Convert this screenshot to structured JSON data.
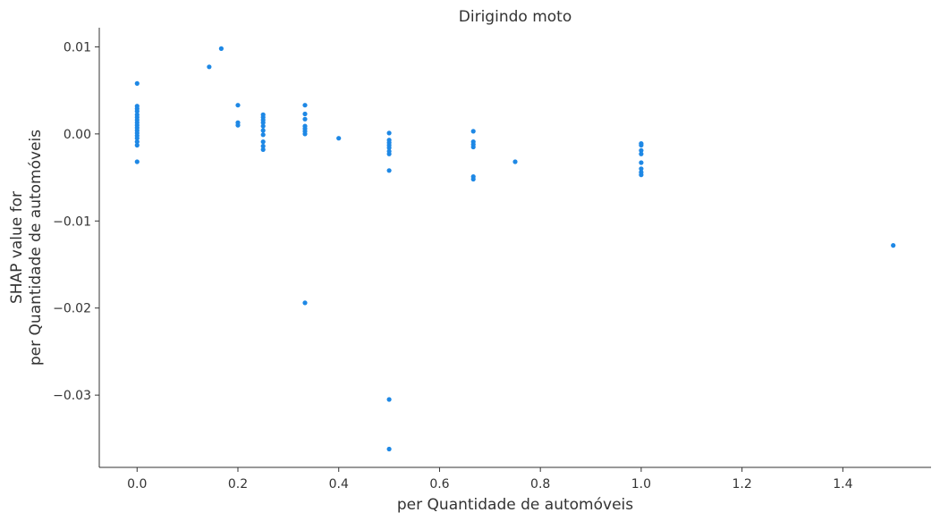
{
  "chart_data": {
    "type": "scatter",
    "title": "Dirigindo moto",
    "xlabel": "per Quantidade de automóveis",
    "ylabel_lines": [
      "SHAP value for",
      "per Quantidade de automóveis"
    ],
    "xlim": [
      -0.075,
      1.575
    ],
    "ylim": [
      -0.0383,
      0.0122
    ],
    "x_ticks": [
      0.0,
      0.2,
      0.4,
      0.6,
      0.8,
      1.0,
      1.2,
      1.4
    ],
    "x_tick_labels": [
      "0.0",
      "0.2",
      "0.4",
      "0.6",
      "0.8",
      "1.0",
      "1.2",
      "1.4"
    ],
    "y_ticks": [
      0.01,
      0.0,
      -0.01,
      -0.02,
      -0.03
    ],
    "y_tick_labels": [
      "0.01",
      "0.00",
      "−0.01",
      "−0.02",
      "−0.03"
    ],
    "grid": false,
    "marker_color": "#1e88e5",
    "points": [
      [
        0.0,
        0.0058
      ],
      [
        0.0,
        0.0032
      ],
      [
        0.0,
        0.0029
      ],
      [
        0.0,
        0.0026
      ],
      [
        0.0,
        0.0022
      ],
      [
        0.0,
        0.0019
      ],
      [
        0.0,
        0.0016
      ],
      [
        0.0,
        0.0013
      ],
      [
        0.0,
        0.001
      ],
      [
        0.0,
        0.0007
      ],
      [
        0.0,
        0.0004
      ],
      [
        0.0,
        0.0001
      ],
      [
        0.0,
        -0.0002
      ],
      [
        0.0,
        -0.0005
      ],
      [
        0.0,
        -0.0009
      ],
      [
        0.0,
        -0.0013
      ],
      [
        0.0,
        -0.0032
      ],
      [
        0.143,
        0.0077
      ],
      [
        0.167,
        0.0098
      ],
      [
        0.2,
        0.0033
      ],
      [
        0.2,
        0.0013
      ],
      [
        0.2,
        0.001
      ],
      [
        0.25,
        0.0022
      ],
      [
        0.25,
        0.0019
      ],
      [
        0.25,
        0.0016
      ],
      [
        0.25,
        0.0013
      ],
      [
        0.25,
        0.0009
      ],
      [
        0.25,
        0.0004
      ],
      [
        0.25,
        -0.0001
      ],
      [
        0.25,
        -0.0009
      ],
      [
        0.25,
        -0.0014
      ],
      [
        0.25,
        -0.0018
      ],
      [
        0.333,
        0.0033
      ],
      [
        0.333,
        0.0023
      ],
      [
        0.333,
        0.0017
      ],
      [
        0.333,
        0.0009
      ],
      [
        0.333,
        0.0006
      ],
      [
        0.333,
        0.0003
      ],
      [
        0.333,
        0.0
      ],
      [
        0.333,
        -0.0194
      ],
      [
        0.4,
        -0.0005
      ],
      [
        0.5,
        0.0001
      ],
      [
        0.5,
        -0.0007
      ],
      [
        0.5,
        -0.001
      ],
      [
        0.5,
        -0.0013
      ],
      [
        0.5,
        -0.0016
      ],
      [
        0.5,
        -0.002
      ],
      [
        0.5,
        -0.0023
      ],
      [
        0.5,
        -0.0042
      ],
      [
        0.5,
        -0.0305
      ],
      [
        0.5,
        -0.0362
      ],
      [
        0.667,
        0.0003
      ],
      [
        0.667,
        -0.0009
      ],
      [
        0.667,
        -0.0012
      ],
      [
        0.667,
        -0.0015
      ],
      [
        0.667,
        -0.0049
      ],
      [
        0.667,
        -0.0052
      ],
      [
        0.75,
        -0.0032
      ],
      [
        1.0,
        -0.0011
      ],
      [
        1.0,
        -0.0013
      ],
      [
        1.0,
        -0.0019
      ],
      [
        1.0,
        -0.0023
      ],
      [
        1.0,
        -0.0033
      ],
      [
        1.0,
        -0.004
      ],
      [
        1.0,
        -0.0044
      ],
      [
        1.0,
        -0.0047
      ],
      [
        1.5,
        -0.0128
      ]
    ]
  }
}
